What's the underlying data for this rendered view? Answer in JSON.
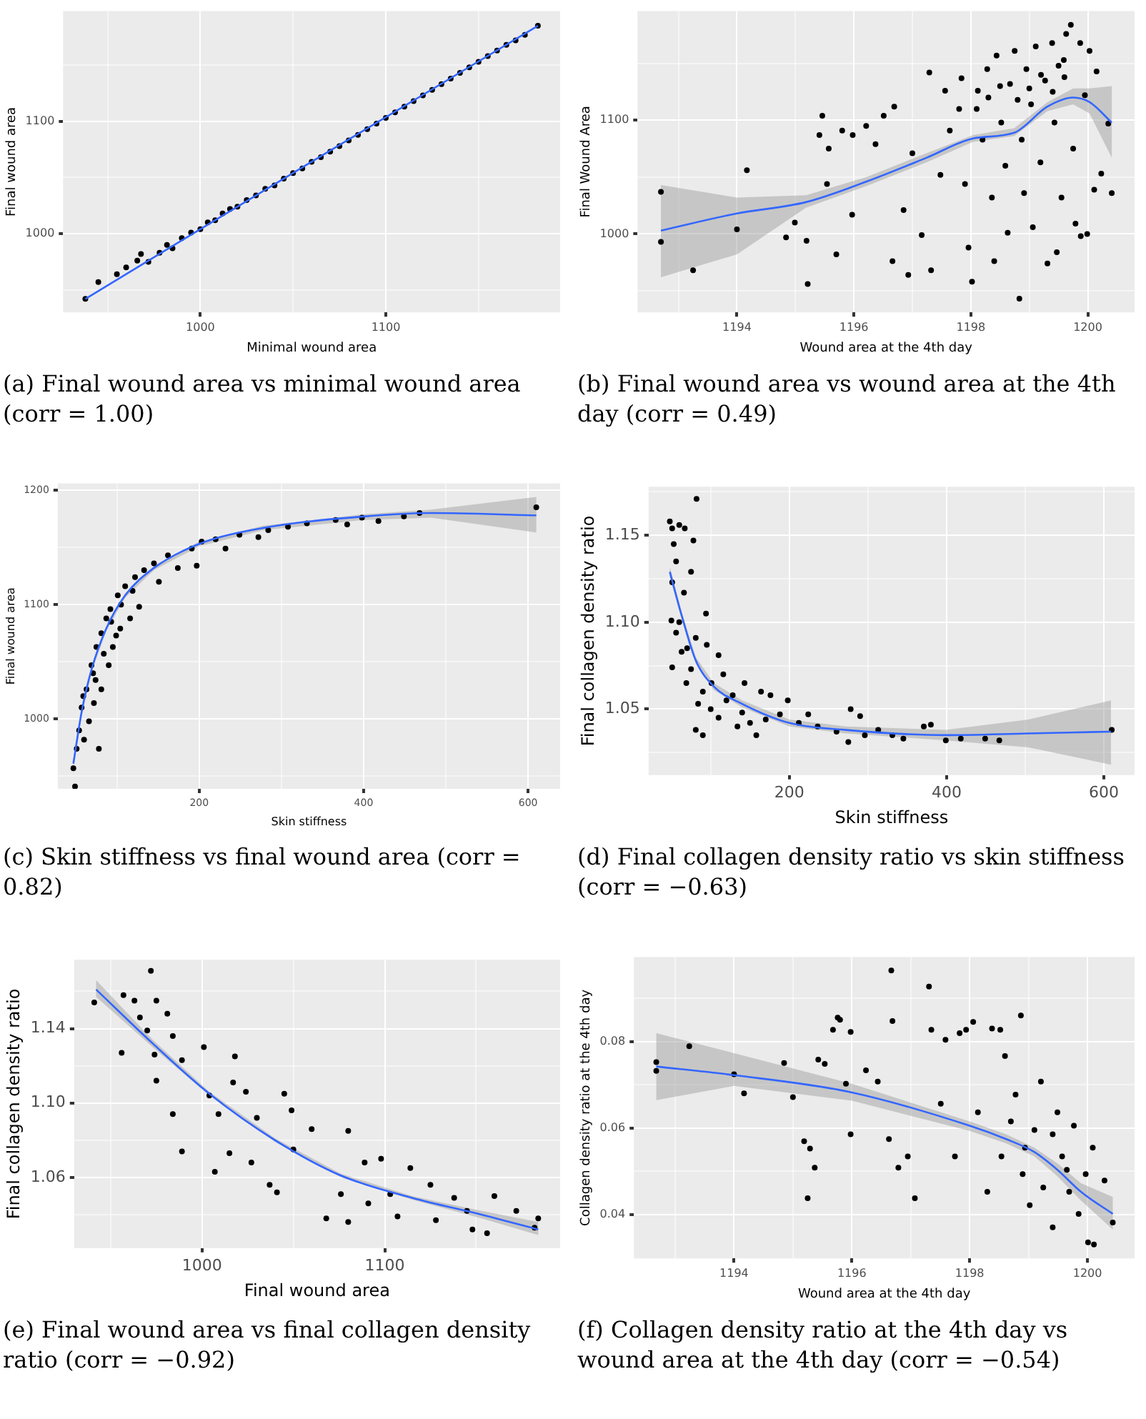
{
  "chart_data": [
    {
      "type": "scatter",
      "xlabel": "Minimal wound area",
      "ylabel": "Final wound area",
      "xlim": [
        926,
        1194
      ],
      "ylim": [
        930,
        1198
      ],
      "xticks": [
        {
          "value": 950,
          "label": null
        },
        1000,
        {
          "value": 1050,
          "label": null
        },
        1100,
        {
          "value": 1150,
          "label": null
        }
      ],
      "yticks": [
        {
          "value": 950,
          "label": null
        },
        1000,
        {
          "value": 1050,
          "label": null
        },
        1100,
        {
          "value": 1150,
          "label": null
        }
      ],
      "grid": true,
      "legend": false,
      "annotations": [
        "(a) Final wound area vs minimal wound area (corr = 1.00)"
      ],
      "series": [
        {
          "type": "scatter",
          "marker": "circle",
          "color": "#000000",
          "x": [
            938,
            945,
            955,
            960,
            966,
            968,
            972,
            978,
            982,
            985,
            990,
            995,
            1000,
            1004,
            1008,
            1012,
            1016,
            1020,
            1025,
            1030,
            1035,
            1040,
            1045,
            1050,
            1055,
            1060,
            1065,
            1070,
            1075,
            1080,
            1085,
            1090,
            1095,
            1100,
            1105,
            1110,
            1115,
            1120,
            1125,
            1130,
            1135,
            1140,
            1145,
            1150,
            1155,
            1160,
            1165,
            1170,
            1175,
            1182
          ],
          "values": [
            942,
            957,
            964,
            970,
            976,
            982,
            975,
            983,
            990,
            987,
            996,
            1001,
            1004,
            1010,
            1012,
            1018,
            1022,
            1024,
            1030,
            1034,
            1040,
            1043,
            1049,
            1054,
            1058,
            1064,
            1068,
            1073,
            1078,
            1083,
            1088,
            1093,
            1098,
            1103,
            1108,
            1113,
            1118,
            1123,
            1128,
            1133,
            1138,
            1143,
            1148,
            1153,
            1158,
            1163,
            1168,
            1172,
            1177,
            1185
          ]
        },
        {
          "type": "line",
          "marker": "none",
          "color": "#3366ff",
          "x": [
            938,
            1060,
            1182
          ],
          "values": [
            942,
            1064,
            1185
          ]
        }
      ]
    },
    {
      "type": "scatter",
      "xlabel": "Wound area at the 4th day",
      "ylabel": "Final Wound Area",
      "xlim": [
        1192.3,
        1200.8
      ],
      "ylim": [
        931,
        1196
      ],
      "xticks": [
        {
          "value": 1193,
          "label": null
        },
        1194,
        {
          "value": 1195,
          "label": null
        },
        1196,
        {
          "value": 1197,
          "label": null
        },
        1198,
        {
          "value": 1199,
          "label": null
        },
        1200
      ],
      "yticks": [
        {
          "value": 950,
          "label": null
        },
        1000,
        {
          "value": 1050,
          "label": null
        },
        1100,
        {
          "value": 1150,
          "label": null
        }
      ],
      "grid": true,
      "legend": false,
      "annotations": [
        "(b) Final wound area vs wound area at the 4th day (corr = 0.49)"
      ],
      "series": [
        {
          "type": "scatter",
          "marker": "circle",
          "color": "#000000",
          "x": [
            1192.7,
            1192.7,
            1193.25,
            1194.0,
            1194.17,
            1194.84,
            1194.99,
            1195.19,
            1195.21,
            1195.41,
            1195.46,
            1195.54,
            1195.57,
            1195.7,
            1195.8,
            1195.97,
            1195.98,
            1196.21,
            1196.37,
            1196.51,
            1196.69,
            1196.66,
            1196.93,
            1196.85,
            1197.0,
            1197.16,
            1197.29,
            1197.32,
            1197.48,
            1197.56,
            1197.64,
            1197.8,
            1197.84,
            1197.9,
            1197.96,
            1198.02,
            1198.12,
            1198.2,
            1198.28,
            1198.36,
            1198.4,
            1198.44,
            1198.52,
            1198.59,
            1198.63,
            1198.67,
            1198.75,
            1198.83,
            1198.87,
            1198.91,
            1198.95,
            1199.03,
            1199.06,
            1199.11,
            1199.19,
            1199.27,
            1199.31,
            1199.39,
            1199.43,
            1199.47,
            1199.55,
            1199.59,
            1199.63,
            1199.71,
            1199.75,
            1199.79,
            1199.87,
            1199.88,
            1199.95,
            1199.99,
            1200.03,
            1200.11,
            1200.15,
            1200.23,
            1200.41,
            1200.35,
            1198.3,
            1198.5,
            1198.8,
            1199.0,
            1199.2,
            1199.4,
            1199.6,
            1198.1,
            1199.5
          ],
          "values": [
            1037,
            993,
            968,
            1004,
            1056,
            997,
            1010,
            994,
            956,
            1087,
            1104,
            1044,
            1075,
            982,
            1091,
            1017,
            1087,
            1095,
            1079,
            1104,
            1112,
            976,
            964,
            1021,
            1071,
            999,
            1142,
            968,
            1052,
            1126,
            1091,
            1110,
            1137,
            1044,
            988,
            958,
            1126,
            1083,
            1145,
            1032,
            976,
            1157,
            1098,
            1060,
            1001,
            1132,
            1161,
            943,
            1083,
            1036,
            1145,
            1114,
            1006,
            1165,
            1063,
            1135,
            974,
            1168,
            1098,
            984,
            1032,
            1153,
            1176,
            1184,
            1075,
            1009,
            1168,
            998,
            1122,
            1000,
            1161,
            1039,
            1143,
            1053,
            1036,
            1097,
            1120,
            1130,
            1118,
            1128,
            1140,
            1125,
            1138,
            1110,
            1148
          ]
        },
        {
          "type": "line",
          "marker": "none",
          "color": "#3366ff",
          "x": [
            1192.7,
            1194.0,
            1195.18,
            1196.21,
            1197.24,
            1198.04,
            1198.74,
            1199.31,
            1199.75,
            1200.03,
            1200.41
          ],
          "values": [
            1003,
            1018,
            1028,
            1046,
            1067,
            1084,
            1089,
            1112,
            1120,
            1116,
            1098
          ],
          "lower": [
            962,
            982,
            1023,
            1042,
            1063,
            1081,
            1086,
            1108,
            1114,
            1106,
            1067
          ],
          "upper": [
            1043,
            1032,
            1034,
            1050,
            1071,
            1087,
            1093,
            1116,
            1128,
            1128,
            1130
          ]
        }
      ]
    },
    {
      "type": "scatter",
      "xlabel": "Skin stiffness",
      "ylabel": "Final wound area",
      "xlim": [
        28,
        639
      ],
      "ylim": [
        939,
        1206
      ],
      "xticks": [
        {
          "value": 100,
          "label": null
        },
        200,
        {
          "value": 300,
          "label": null
        },
        400,
        {
          "value": 500,
          "label": null
        },
        600
      ],
      "yticks": [
        {
          "value": 950,
          "label": null
        },
        1000,
        {
          "value": 1050,
          "label": null
        },
        1100,
        {
          "value": 1150,
          "label": null
        },
        1200
      ],
      "grid": true,
      "legend": false,
      "annotations": [
        "(c) Skin stiffness vs final wound area (corr = 0.82)"
      ],
      "series": [
        {
          "type": "scatter",
          "marker": "circle",
          "color": "#000000",
          "x": [
            47,
            49,
            51,
            54,
            57,
            60,
            63,
            66,
            69,
            72,
            75,
            78,
            81,
            81,
            87,
            90,
            92,
            95,
            101,
            104,
            110,
            116,
            122,
            127,
            133,
            145,
            151,
            162,
            174,
            191,
            197,
            203,
            220,
            232,
            249,
            272,
            284,
            308,
            331,
            366,
            380,
            398,
            418,
            449,
            468,
            610,
            74,
            84,
            99,
            119,
            59,
            71,
            93,
            105
          ],
          "values": [
            957,
            941,
            974,
            990,
            1010,
            982,
            1026,
            998,
            1047,
            1014,
            1063,
            974,
            1075,
            1026,
            1088,
            1047,
            1096,
            1063,
            1108,
            1079,
            1116,
            1088,
            1124,
            1098,
            1130,
            1136,
            1120,
            1143,
            1132,
            1149,
            1134,
            1155,
            1157,
            1149,
            1161,
            1159,
            1165,
            1168,
            1171,
            1174,
            1170,
            1176,
            1173,
            1177,
            1180,
            1185,
            1034,
            1057,
            1073,
            1112,
            1020,
            1040,
            1085,
            1100
          ]
        },
        {
          "type": "line",
          "marker": "none",
          "color": "#3366ff",
          "x": [
            47,
            57,
            69,
            87,
            110,
            145,
            200,
            278,
            400,
            482,
            610
          ],
          "values": [
            961,
            1006,
            1043,
            1079,
            1108,
            1132,
            1153,
            1167,
            1177,
            1180,
            1178
          ],
          "lower": [
            957,
            1003,
            1041,
            1077,
            1106,
            1130,
            1151,
            1165,
            1174,
            1176,
            1163
          ],
          "upper": [
            965,
            1009,
            1045,
            1081,
            1110,
            1134,
            1155,
            1169,
            1179,
            1183,
            1194
          ]
        }
      ]
    },
    {
      "type": "scatter",
      "xlabel": "Skin stiffness",
      "ylabel": "Final collagen density ratio",
      "xlim": [
        21,
        639
      ],
      "ylim": [
        1.012,
        1.178
      ],
      "xticks": [
        {
          "value": 100,
          "label": null
        },
        200,
        {
          "value": 300,
          "label": null
        },
        400,
        {
          "value": 500,
          "label": null
        },
        600
      ],
      "yticks": [
        {
          "value": 1.025,
          "label": null
        },
        1.05,
        {
          "value": 1.075,
          "label": null
        },
        {
          "value": 1.1,
          "label": "1.10"
        },
        {
          "value": 1.125,
          "label": null
        },
        1.15,
        {
          "value": 1.175,
          "label": null
        }
      ],
      "grid": true,
      "legend": false,
      "annotations": [
        "(d) Final collagen density ratio vs skin stiffness (corr = −0.63)"
      ],
      "series": [
        {
          "type": "scatter",
          "marker": "circle",
          "color": "#000000",
          "x": [
            48,
            51,
            60,
            67,
            82,
            78,
            53,
            56,
            75,
            51,
            66,
            50,
            94,
            56,
            81,
            51,
            63,
            75,
            95,
            110,
            69,
            84,
            81,
            90,
            101,
            116,
            128,
            143,
            164,
            176,
            134,
            158,
            188,
            198,
            212,
            224,
            236,
            260,
            278,
            290,
            275,
            296,
            313,
            331,
            345,
            371,
            380,
            399,
            418,
            449,
            467,
            610,
            100,
            110,
            120,
            140,
            150,
            170,
            60,
            70,
            90
          ],
          "values": [
            1.158,
            1.154,
            1.156,
            1.154,
            1.171,
            1.147,
            1.145,
            1.135,
            1.129,
            1.123,
            1.117,
            1.101,
            1.105,
            1.094,
            1.091,
            1.074,
            1.083,
            1.073,
            1.087,
            1.081,
            1.065,
            1.053,
            1.038,
            1.035,
            1.065,
            1.07,
            1.058,
            1.065,
            1.06,
            1.058,
            1.04,
            1.035,
            1.047,
            1.055,
            1.042,
            1.047,
            1.04,
            1.037,
            1.05,
            1.046,
            1.031,
            1.035,
            1.038,
            1.035,
            1.033,
            1.04,
            1.041,
            1.032,
            1.033,
            1.033,
            1.032,
            1.038,
            1.05,
            1.045,
            1.055,
            1.048,
            1.042,
            1.044,
            1.1,
            1.085,
            1.06
          ]
        },
        {
          "type": "line",
          "marker": "none",
          "color": "#3366ff",
          "x": [
            48,
            63,
            81,
            104,
            140,
            200,
            272,
            399,
            504,
            609
          ],
          "values": [
            1.129,
            1.104,
            1.078,
            1.063,
            1.053,
            1.042,
            1.038,
            1.035,
            1.036,
            1.037
          ],
          "lower": [
            1.126,
            1.102,
            1.076,
            1.061,
            1.051,
            1.04,
            1.036,
            1.032,
            1.028,
            1.018
          ],
          "upper": [
            1.132,
            1.106,
            1.08,
            1.065,
            1.055,
            1.044,
            1.04,
            1.038,
            1.044,
            1.055
          ]
        }
      ]
    },
    {
      "type": "scatter",
      "xlabel": "Final wound area",
      "ylabel": "Final collagen density ratio",
      "xlim": [
        930,
        1196
      ],
      "ylim": [
        1.022,
        1.177
      ],
      "xticks": [
        {
          "value": 950,
          "label": null
        },
        1000,
        {
          "value": 1050,
          "label": null
        },
        1100,
        {
          "value": 1150,
          "label": null
        }
      ],
      "yticks": [
        {
          "value": 1.04,
          "label": null
        },
        1.06,
        {
          "value": 1.08,
          "label": null
        },
        {
          "value": 1.1,
          "label": "1.10"
        },
        {
          "value": 1.12,
          "label": null
        },
        1.14,
        {
          "value": 1.16,
          "label": null
        }
      ],
      "grid": true,
      "legend": false,
      "annotations": [
        "(e) Final wound area vs final collagen density ratio (corr = −0.92)"
      ],
      "series": [
        {
          "type": "scatter",
          "marker": "circle",
          "color": "#000000",
          "x": [
            941,
            956,
            957,
            963,
            966,
            972,
            975,
            970,
            974,
            975,
            981,
            984,
            984,
            989,
            989,
            1001,
            1004,
            1007,
            1018,
            1009,
            1017,
            1015,
            1024,
            1030,
            1027,
            1037,
            1041,
            1045,
            1049,
            1050,
            1060,
            1068,
            1080,
            1080,
            1089,
            1098,
            1103,
            1114,
            1125,
            1138,
            1145,
            1160,
            1172,
            1182,
            1184,
            1076,
            1091,
            1107,
            1128,
            1148,
            1156
          ],
          "values": [
            1.154,
            1.127,
            1.158,
            1.155,
            1.146,
            1.171,
            1.155,
            1.139,
            1.126,
            1.112,
            1.148,
            1.136,
            1.094,
            1.123,
            1.074,
            1.13,
            1.104,
            1.063,
            1.125,
            1.094,
            1.111,
            1.073,
            1.106,
            1.092,
            1.068,
            1.056,
            1.052,
            1.105,
            1.096,
            1.075,
            1.086,
            1.038,
            1.085,
            1.036,
            1.068,
            1.07,
            1.051,
            1.065,
            1.056,
            1.049,
            1.042,
            1.05,
            1.042,
            1.033,
            1.038,
            1.051,
            1.046,
            1.039,
            1.037,
            1.032,
            1.03
          ]
        },
        {
          "type": "line",
          "marker": "none",
          "color": "#3366ff",
          "x": [
            942,
            973,
            1004,
            1040,
            1076,
            1115,
            1153,
            1184
          ],
          "values": [
            1.161,
            1.132,
            1.105,
            1.08,
            1.061,
            1.049,
            1.04,
            1.032
          ],
          "lower": [
            1.157,
            1.13,
            1.104,
            1.079,
            1.06,
            1.048,
            1.038,
            1.029
          ],
          "upper": [
            1.166,
            1.134,
            1.106,
            1.081,
            1.062,
            1.05,
            1.042,
            1.036
          ]
        }
      ]
    },
    {
      "type": "scatter",
      "xlabel": "Wound area at the 4th day",
      "ylabel": "Collagen density ratio at the 4th day",
      "xlim": [
        1192.3,
        1200.8
      ],
      "ylim": [
        0.0298,
        0.0995
      ],
      "xticks": [
        {
          "value": 1193,
          "label": null
        },
        1194,
        {
          "value": 1195,
          "label": null
        },
        1196,
        {
          "value": 1197,
          "label": null
        },
        1198,
        {
          "value": 1199,
          "label": null
        },
        1200
      ],
      "yticks": [
        0.04,
        {
          "value": 0.05,
          "label": null
        },
        0.06,
        {
          "value": 0.07,
          "label": null
        },
        0.08,
        {
          "value": 0.09,
          "label": null
        }
      ],
      "grid": true,
      "legend": false,
      "annotations": [
        "(f) Collagen density ratio at the 4th day vs wound area at the 4th day (corr = −0.54)"
      ],
      "series": [
        {
          "type": "scatter",
          "marker": "circle",
          "color": "#000000",
          "x": [
            1192.68,
            1192.68,
            1193.24,
            1194.0,
            1194.17,
            1194.85,
            1195.0,
            1195.19,
            1195.29,
            1195.25,
            1195.37,
            1195.43,
            1195.54,
            1195.68,
            1195.76,
            1195.8,
            1195.98,
            1195.9,
            1195.98,
            1196.24,
            1196.44,
            1196.67,
            1196.69,
            1196.63,
            1196.79,
            1196.95,
            1197.07,
            1197.31,
            1197.35,
            1197.51,
            1197.59,
            1197.75,
            1197.83,
            1197.94,
            1198.06,
            1198.14,
            1198.3,
            1198.38,
            1198.52,
            1198.54,
            1198.6,
            1198.87,
            1198.78,
            1198.9,
            1199.02,
            1199.1,
            1199.21,
            1199.25,
            1199.41,
            1199.49,
            1199.57,
            1199.69,
            1199.77,
            1199.85,
            1199.97,
            1200.01,
            1200.11,
            1200.09,
            1200.29,
            1200.43,
            1198.7,
            1198.94,
            1199.41,
            1199.65
          ],
          "values": [
            0.0752,
            0.0732,
            0.0789,
            0.0724,
            0.068,
            0.075,
            0.0671,
            0.0569,
            0.0552,
            0.0437,
            0.0508,
            0.0758,
            0.0748,
            0.0827,
            0.0855,
            0.085,
            0.0822,
            0.0702,
            0.0585,
            0.0733,
            0.0707,
            0.0964,
            0.0847,
            0.0574,
            0.0508,
            0.0534,
            0.0437,
            0.0927,
            0.0827,
            0.0656,
            0.0804,
            0.0534,
            0.0819,
            0.0827,
            0.0845,
            0.0636,
            0.0452,
            0.083,
            0.0827,
            0.0534,
            0.0766,
            0.086,
            0.0677,
            0.0493,
            0.0421,
            0.0595,
            0.0707,
            0.0462,
            0.037,
            0.0636,
            0.0534,
            0.0452,
            0.0605,
            0.0401,
            0.0493,
            0.0335,
            0.033,
            0.0554,
            0.0478,
            0.0381,
            0.0615,
            0.0554,
            0.0585,
            0.0503
          ]
        },
        {
          "type": "line",
          "marker": "none",
          "color": "#3366ff",
          "x": [
            1192.68,
            1194.0,
            1196.0,
            1198.0,
            1198.62,
            1199.1,
            1199.49,
            1199.89,
            1200.43
          ],
          "values": [
            0.0742,
            0.0722,
            0.0682,
            0.0605,
            0.0574,
            0.0544,
            0.0503,
            0.0452,
            0.0401
          ],
          "lower": [
            0.0664,
            0.0697,
            0.0663,
            0.0593,
            0.0564,
            0.0534,
            0.0488,
            0.0432,
            0.0365
          ],
          "upper": [
            0.0819,
            0.0773,
            0.0702,
            0.0615,
            0.0585,
            0.0554,
            0.0518,
            0.0472,
            0.044
          ]
        }
      ]
    }
  ]
}
